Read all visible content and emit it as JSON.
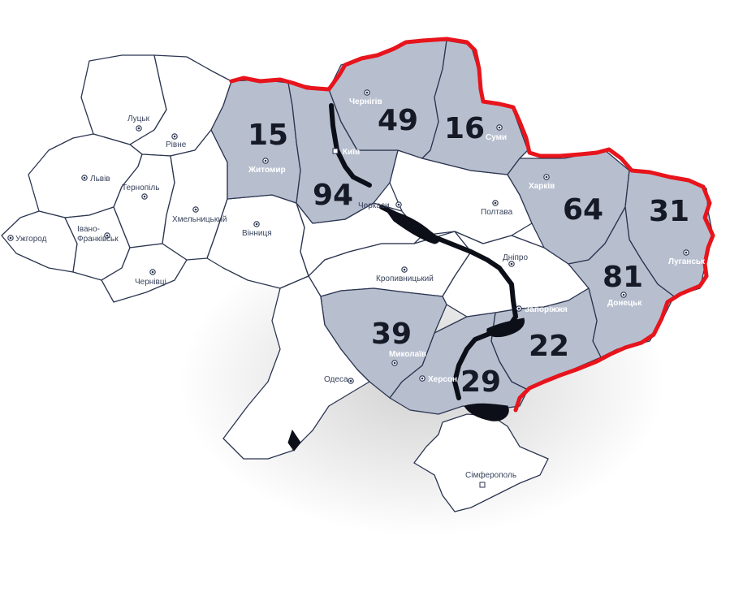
{
  "colors": {
    "marked_region": "#b7bfcf",
    "plain_region": "#ffffff",
    "border": "#2b3550",
    "frontline": "#e8141c",
    "water": "#0c0f18",
    "count_text": "#161a26"
  },
  "regions": [
    {
      "id": "zhytomyr",
      "city": "Житомир",
      "count": "15",
      "marked": true
    },
    {
      "id": "kyiv",
      "city": "Київ",
      "count": "94",
      "marked": true
    },
    {
      "id": "chernihiv",
      "city": "Чернігів",
      "count": "49",
      "marked": true
    },
    {
      "id": "sumy",
      "city": "Суми",
      "count": "16",
      "marked": true
    },
    {
      "id": "kharkiv",
      "city": "Харків",
      "count": "64",
      "marked": true
    },
    {
      "id": "luhansk",
      "city": "Луганськ",
      "count": "31",
      "marked": true
    },
    {
      "id": "donetsk",
      "city": "Донецьк",
      "count": "81",
      "marked": true
    },
    {
      "id": "zaporizhzhia",
      "city": "Запоріжжя",
      "count": "22",
      "marked": true
    },
    {
      "id": "kherson",
      "city": "Херсон",
      "count": "29",
      "marked": true
    },
    {
      "id": "mykolaiv",
      "city": "Миколаїв",
      "count": "39",
      "marked": true
    },
    {
      "id": "volyn",
      "city": "Луцьк",
      "marked": false
    },
    {
      "id": "rivne",
      "city": "Рівне",
      "marked": false
    },
    {
      "id": "lviv",
      "city": "Львів",
      "marked": false
    },
    {
      "id": "ternopil",
      "city": "Тернопіль",
      "marked": false
    },
    {
      "id": "khmelnytskyi",
      "city": "Хмельницький",
      "marked": false
    },
    {
      "id": "zakarpattia",
      "city": "Ужгород",
      "marked": false
    },
    {
      "id": "ivano-frankivsk",
      "city_lines": [
        "Івано-",
        "Франківськ"
      ],
      "marked": false
    },
    {
      "id": "chernivtsi",
      "city": "Чернівці",
      "marked": false
    },
    {
      "id": "vinnytsia",
      "city": "Вінниця",
      "marked": false
    },
    {
      "id": "cherkasy",
      "city": "Черкаси",
      "marked": false
    },
    {
      "id": "poltava",
      "city": "Полтава",
      "marked": false
    },
    {
      "id": "kirovohrad",
      "city": "Кропивницький",
      "marked": false
    },
    {
      "id": "dnipro",
      "city": "Дніпро",
      "marked": false
    },
    {
      "id": "odesa",
      "city": "Одеса",
      "marked": false
    },
    {
      "id": "crimea",
      "city": "Сімферополь",
      "marked": false
    }
  ]
}
